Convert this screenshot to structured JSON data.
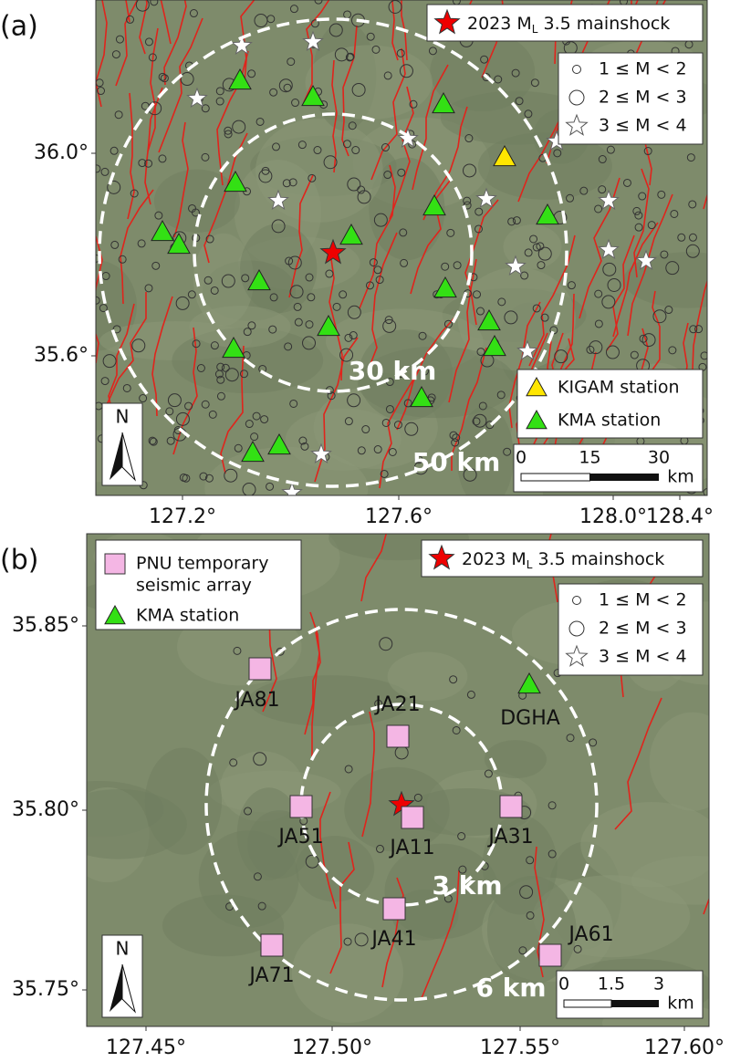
{
  "panels": [
    {
      "label": "(a)",
      "xticks": [
        {
          "value": 127.2,
          "label": "127.2°"
        },
        {
          "value": 127.6,
          "label": "127.6°"
        },
        {
          "value": 128.0,
          "label": "128.0°"
        },
        {
          "value": 128.4,
          "label": "128.4°"
        }
      ],
      "yticks": [
        {
          "value": 36.0,
          "label": "36.0°"
        },
        {
          "value": 35.6,
          "label": "35.6°"
        }
      ],
      "mainshock": {
        "prefix": "2023 M",
        "sub": "L",
        "suffix": " 3.5 mainshock"
      },
      "magnitudes": [
        "1 ≤ M < 2",
        "2 ≤ M < 3",
        "3 ≤ M < 4"
      ],
      "station_legend": [
        "KIGAM station",
        "KMA station"
      ],
      "rings": [
        "30 km",
        "50 km"
      ],
      "scale": {
        "ticks": [
          0,
          15,
          30
        ],
        "unit": "km"
      },
      "north": "N"
    },
    {
      "label": "(b)",
      "xticks": [
        {
          "value": 127.45,
          "label": "127.45°"
        },
        {
          "value": 127.5,
          "label": "127.50°"
        },
        {
          "value": 127.55,
          "label": "127.55°"
        },
        {
          "value": 127.6,
          "label": "127.60°"
        }
      ],
      "yticks": [
        {
          "value": 35.85,
          "label": "35.85°"
        },
        {
          "value": 35.8,
          "label": "35.80°"
        },
        {
          "value": 35.75,
          "label": "35.75°"
        }
      ],
      "mainshock": {
        "prefix": "2023 M",
        "sub": "L",
        "suffix": " 3.5 mainshock"
      },
      "magnitudes": [
        "1 ≤ M < 2",
        "2 ≤ M < 3",
        "3 ≤ M < 4"
      ],
      "station_legend": [
        "PNU temporary",
        "seismic array",
        "KMA station"
      ],
      "stations": [
        "JA81",
        "JA21",
        "DGHA",
        "JA51",
        "JA11",
        "JA31",
        "JA41",
        "JA71",
        "JA61"
      ],
      "rings": [
        "3 km",
        "6 km"
      ],
      "scale": {
        "ticks": [
          0,
          1.5,
          3
        ],
        "unit": "km"
      },
      "north": "N"
    }
  ]
}
